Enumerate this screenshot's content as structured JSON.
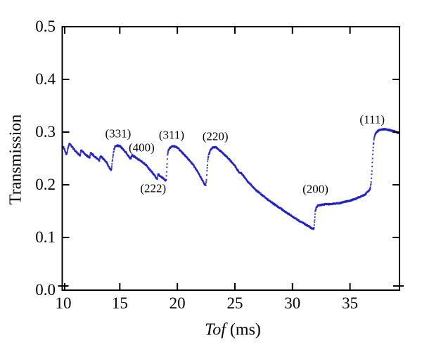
{
  "chart_data": {
    "type": "scatter",
    "title": "",
    "ylabel": "Transmission",
    "xlabel_italic": "Tof",
    "xlabel_unit": "(ms)",
    "xlim": [
      10,
      39.3
    ],
    "ylim": [
      0.0,
      0.5
    ],
    "x_ticks": [
      10,
      15,
      20,
      25,
      30,
      35
    ],
    "y_ticks": [
      0.0,
      0.1,
      0.2,
      0.3,
      0.4,
      0.5
    ],
    "grid": false,
    "legend": "none",
    "point_color": "#2222bd",
    "axis_color": "#000000",
    "annotations": [
      {
        "label": "(331)",
        "x": 14.85,
        "y": 0.298
      },
      {
        "label": "(400)",
        "x": 16.9,
        "y": 0.271
      },
      {
        "label": "(222)",
        "x": 17.9,
        "y": 0.193
      },
      {
        "label": "(311)",
        "x": 19.5,
        "y": 0.2945
      },
      {
        "label": "(220)",
        "x": 23.3,
        "y": 0.2915
      },
      {
        "label": "(200)",
        "x": 32.0,
        "y": 0.1915
      },
      {
        "label": "(111)",
        "x": 36.93,
        "y": 0.3235
      }
    ],
    "series": [
      {
        "name": "transmission",
        "control_points": [
          [
            10.0,
            0.2705
          ],
          [
            10.1,
            0.272
          ],
          [
            10.22,
            0.266
          ],
          [
            10.33,
            0.258
          ],
          [
            10.42,
            0.26
          ],
          [
            10.5,
            0.27
          ],
          [
            10.6,
            0.2775
          ],
          [
            10.72,
            0.276
          ],
          [
            10.95,
            0.269
          ],
          [
            11.2,
            0.2625
          ],
          [
            11.45,
            0.2575
          ],
          [
            11.56,
            0.2555
          ],
          [
            11.63,
            0.266
          ],
          [
            11.9,
            0.26
          ],
          [
            12.15,
            0.255
          ],
          [
            12.38,
            0.2515
          ],
          [
            12.46,
            0.261
          ],
          [
            12.75,
            0.255
          ],
          [
            13.05,
            0.2495
          ],
          [
            13.23,
            0.246
          ],
          [
            13.32,
            0.2545
          ],
          [
            13.6,
            0.2485
          ],
          [
            13.85,
            0.2425
          ],
          [
            14.05,
            0.234
          ],
          [
            14.2,
            0.229
          ],
          [
            14.27,
            0.228
          ],
          [
            14.33,
            0.24
          ],
          [
            14.41,
            0.2545
          ],
          [
            14.5,
            0.267
          ],
          [
            14.6,
            0.273
          ],
          [
            14.8,
            0.2745
          ],
          [
            15.0,
            0.2735
          ],
          [
            15.25,
            0.2685
          ],
          [
            15.5,
            0.2625
          ],
          [
            15.8,
            0.253
          ],
          [
            15.96,
            0.2495
          ],
          [
            16.06,
            0.2565
          ],
          [
            16.35,
            0.252
          ],
          [
            16.7,
            0.247
          ],
          [
            17.0,
            0.2425
          ],
          [
            17.3,
            0.237
          ],
          [
            17.6,
            0.229
          ],
          [
            17.9,
            0.221
          ],
          [
            18.1,
            0.215
          ],
          [
            18.25,
            0.2105
          ],
          [
            18.33,
            0.2205
          ],
          [
            18.55,
            0.216
          ],
          [
            18.78,
            0.212
          ],
          [
            18.97,
            0.208
          ],
          [
            19.03,
            0.21
          ],
          [
            19.07,
            0.224
          ],
          [
            19.11,
            0.24
          ],
          [
            19.15,
            0.2555
          ],
          [
            19.22,
            0.265
          ],
          [
            19.38,
            0.2705
          ],
          [
            19.6,
            0.2728
          ],
          [
            19.85,
            0.2722
          ],
          [
            20.1,
            0.2685
          ],
          [
            20.45,
            0.2605
          ],
          [
            20.8,
            0.2525
          ],
          [
            21.1,
            0.2452
          ],
          [
            21.4,
            0.237
          ],
          [
            21.7,
            0.2272
          ],
          [
            22.0,
            0.216
          ],
          [
            22.2,
            0.2072
          ],
          [
            22.38,
            0.2005
          ],
          [
            22.47,
            0.199
          ],
          [
            22.53,
            0.211
          ],
          [
            22.58,
            0.226
          ],
          [
            22.63,
            0.244
          ],
          [
            22.72,
            0.257
          ],
          [
            22.87,
            0.2655
          ],
          [
            23.08,
            0.2708
          ],
          [
            23.35,
            0.2715
          ],
          [
            23.65,
            0.266
          ],
          [
            24.0,
            0.259
          ],
          [
            24.35,
            0.252
          ],
          [
            24.7,
            0.2435
          ],
          [
            25.1,
            0.233
          ],
          [
            25.35,
            0.224
          ],
          [
            25.6,
            0.221
          ],
          [
            26.0,
            0.209
          ],
          [
            26.4,
            0.2
          ],
          [
            26.8,
            0.1905
          ],
          [
            27.2,
            0.1835
          ],
          [
            27.6,
            0.1765
          ],
          [
            28.0,
            0.1695
          ],
          [
            28.4,
            0.1635
          ],
          [
            28.8,
            0.1575
          ],
          [
            29.2,
            0.1515
          ],
          [
            29.6,
            0.1455
          ],
          [
            30.0,
            0.14
          ],
          [
            30.4,
            0.134
          ],
          [
            30.8,
            0.129
          ],
          [
            31.2,
            0.124
          ],
          [
            31.55,
            0.1195
          ],
          [
            31.8,
            0.116
          ],
          [
            31.88,
            0.1175
          ],
          [
            31.93,
            0.133
          ],
          [
            31.98,
            0.149
          ],
          [
            32.06,
            0.157
          ],
          [
            32.2,
            0.1605
          ],
          [
            32.45,
            0.1618
          ],
          [
            32.8,
            0.1628
          ],
          [
            33.2,
            0.1632
          ],
          [
            33.6,
            0.164
          ],
          [
            34.0,
            0.1652
          ],
          [
            34.4,
            0.1668
          ],
          [
            34.8,
            0.1688
          ],
          [
            35.2,
            0.1712
          ],
          [
            35.6,
            0.1745
          ],
          [
            36.0,
            0.1782
          ],
          [
            36.3,
            0.1818
          ],
          [
            36.55,
            0.1862
          ],
          [
            36.7,
            0.1905
          ],
          [
            36.78,
            0.1945
          ],
          [
            36.84,
            0.206
          ],
          [
            36.9,
            0.226
          ],
          [
            36.96,
            0.25
          ],
          [
            37.02,
            0.272
          ],
          [
            37.09,
            0.288
          ],
          [
            37.18,
            0.2955
          ],
          [
            37.35,
            0.301
          ],
          [
            37.55,
            0.304
          ],
          [
            37.8,
            0.3055
          ],
          [
            38.1,
            0.3052
          ],
          [
            38.5,
            0.3035
          ],
          [
            38.9,
            0.3008
          ],
          [
            39.25,
            0.298
          ]
        ]
      }
    ],
    "sampling": {
      "dt_ms": 0.02,
      "noise": 0.0013,
      "dot_size": 2.1
    }
  }
}
